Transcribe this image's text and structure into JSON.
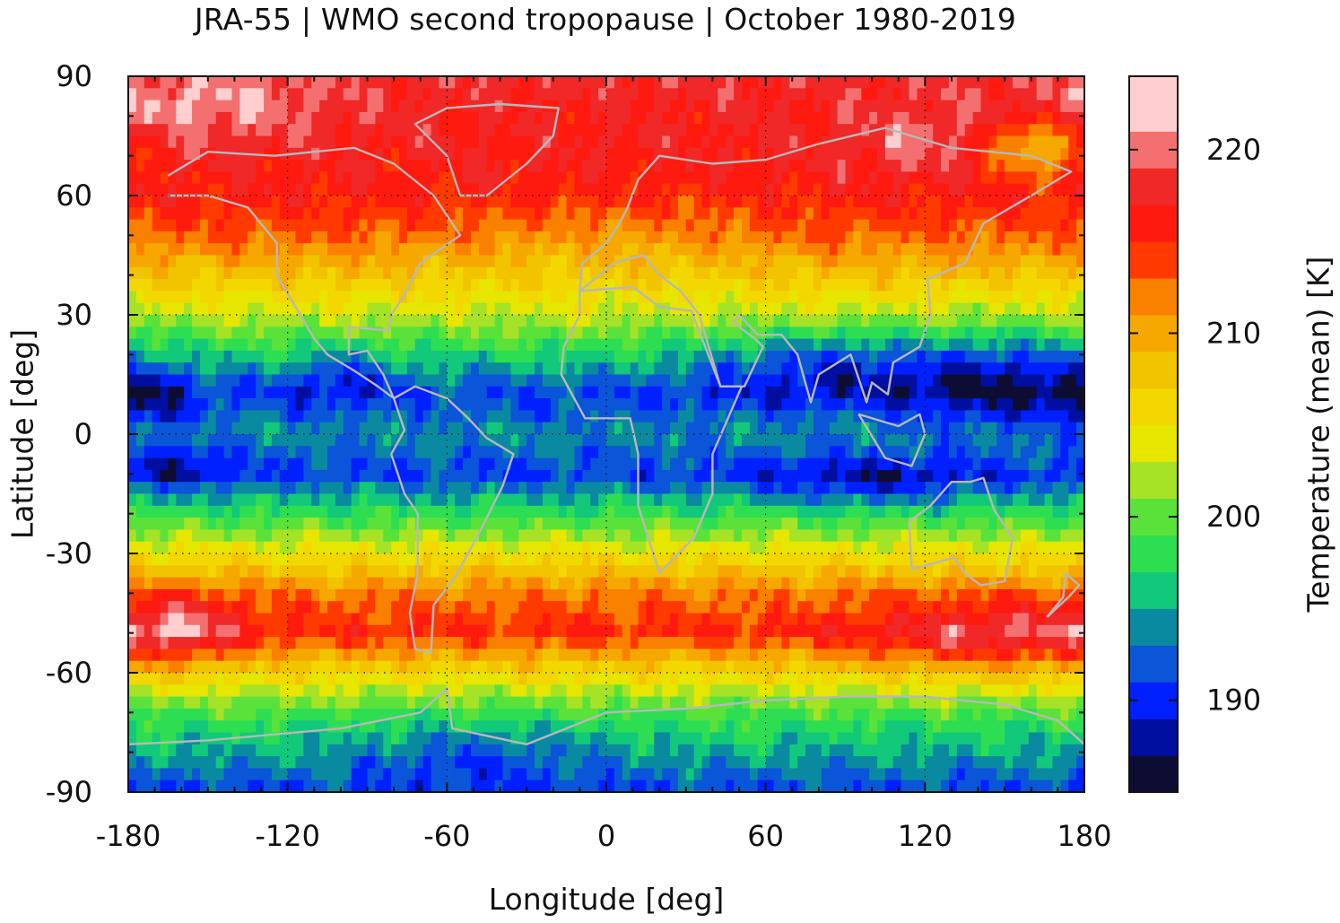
{
  "chart_data": {
    "type": "heatmap",
    "title": "JRA-55 | WMO second tropopause | October 1980-2019",
    "xlabel": "Longitude [deg]",
    "ylabel": "Latitude [deg]",
    "colorbar_label": "Temperature (mean) [K]",
    "xlim": [
      -180,
      180
    ],
    "ylim": [
      -90,
      90
    ],
    "xticks": [
      -180,
      -120,
      -60,
      0,
      60,
      120,
      180
    ],
    "yticks": [
      90,
      60,
      30,
      0,
      -30,
      -60,
      -90
    ],
    "colorbar_ticks": [
      190,
      200,
      210,
      220
    ],
    "colorbar_range": [
      185,
      224
    ],
    "grid": true,
    "colorbar_levels": [
      {
        "value": 185,
        "color": "#0d0d33"
      },
      {
        "value": 187,
        "color": "#000fa0"
      },
      {
        "value": 189,
        "color": "#0020ff"
      },
      {
        "value": 191,
        "color": "#0a55d8"
      },
      {
        "value": 193,
        "color": "#0a8aa0"
      },
      {
        "value": 195,
        "color": "#12c87a"
      },
      {
        "value": 197,
        "color": "#2ede52"
      },
      {
        "value": 199,
        "color": "#5ae23a"
      },
      {
        "value": 201,
        "color": "#a6e226"
      },
      {
        "value": 203,
        "color": "#e6e600"
      },
      {
        "value": 205,
        "color": "#f2d800"
      },
      {
        "value": 207,
        "color": "#f2c400"
      },
      {
        "value": 209,
        "color": "#f6a800"
      },
      {
        "value": 211,
        "color": "#fa8000"
      },
      {
        "value": 213,
        "color": "#ff3a00"
      },
      {
        "value": 215,
        "color": "#ff1a10"
      },
      {
        "value": 217,
        "color": "#f02828"
      },
      {
        "value": 219,
        "color": "#f47070"
      },
      {
        "value": 221,
        "color": "#ffcfcf"
      }
    ],
    "zonal_profile": [
      {
        "lat": 90,
        "t": 218
      },
      {
        "lat": 80,
        "t": 217
      },
      {
        "lat": 70,
        "t": 217
      },
      {
        "lat": 60,
        "t": 216
      },
      {
        "lat": 50,
        "t": 213
      },
      {
        "lat": 40,
        "t": 208
      },
      {
        "lat": 30,
        "t": 203
      },
      {
        "lat": 20,
        "t": 197
      },
      {
        "lat": 10,
        "t": 191
      },
      {
        "lat": 0,
        "t": 194
      },
      {
        "lat": -10,
        "t": 191
      },
      {
        "lat": -20,
        "t": 198
      },
      {
        "lat": -30,
        "t": 205
      },
      {
        "lat": -40,
        "t": 212
      },
      {
        "lat": -50,
        "t": 215
      },
      {
        "lat": -60,
        "t": 206
      },
      {
        "lat": -70,
        "t": 199
      },
      {
        "lat": -80,
        "t": 195
      },
      {
        "lat": -90,
        "t": 191
      }
    ]
  }
}
